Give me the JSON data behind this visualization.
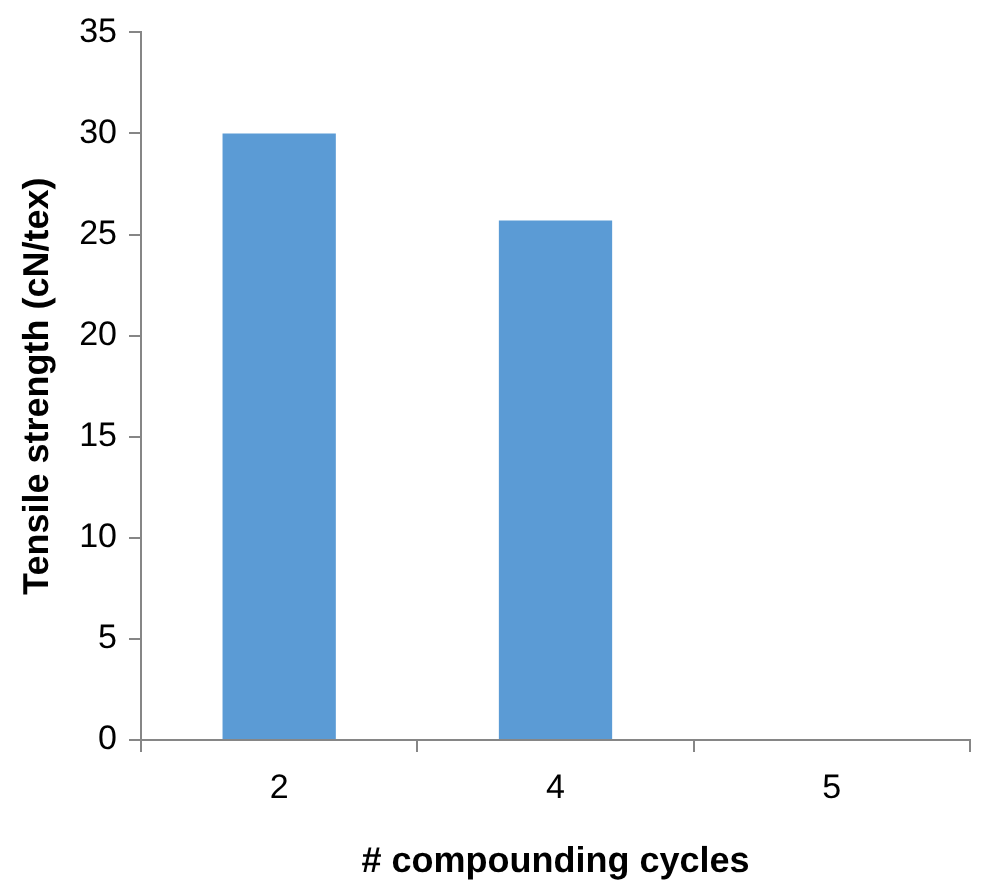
{
  "chart_data": {
    "type": "bar",
    "xlabel": "# compounding cycles",
    "ylabel": "Tensile strength (cN/tex)",
    "categories": [
      "2",
      "4",
      "5"
    ],
    "values": [
      30,
      25.7,
      0
    ],
    "color": "#5b9bd5",
    "ylim": [
      0,
      35
    ],
    "yticks": [
      0,
      5,
      10,
      15,
      20,
      25,
      30,
      35
    ],
    "grid": false,
    "legend": false
  }
}
